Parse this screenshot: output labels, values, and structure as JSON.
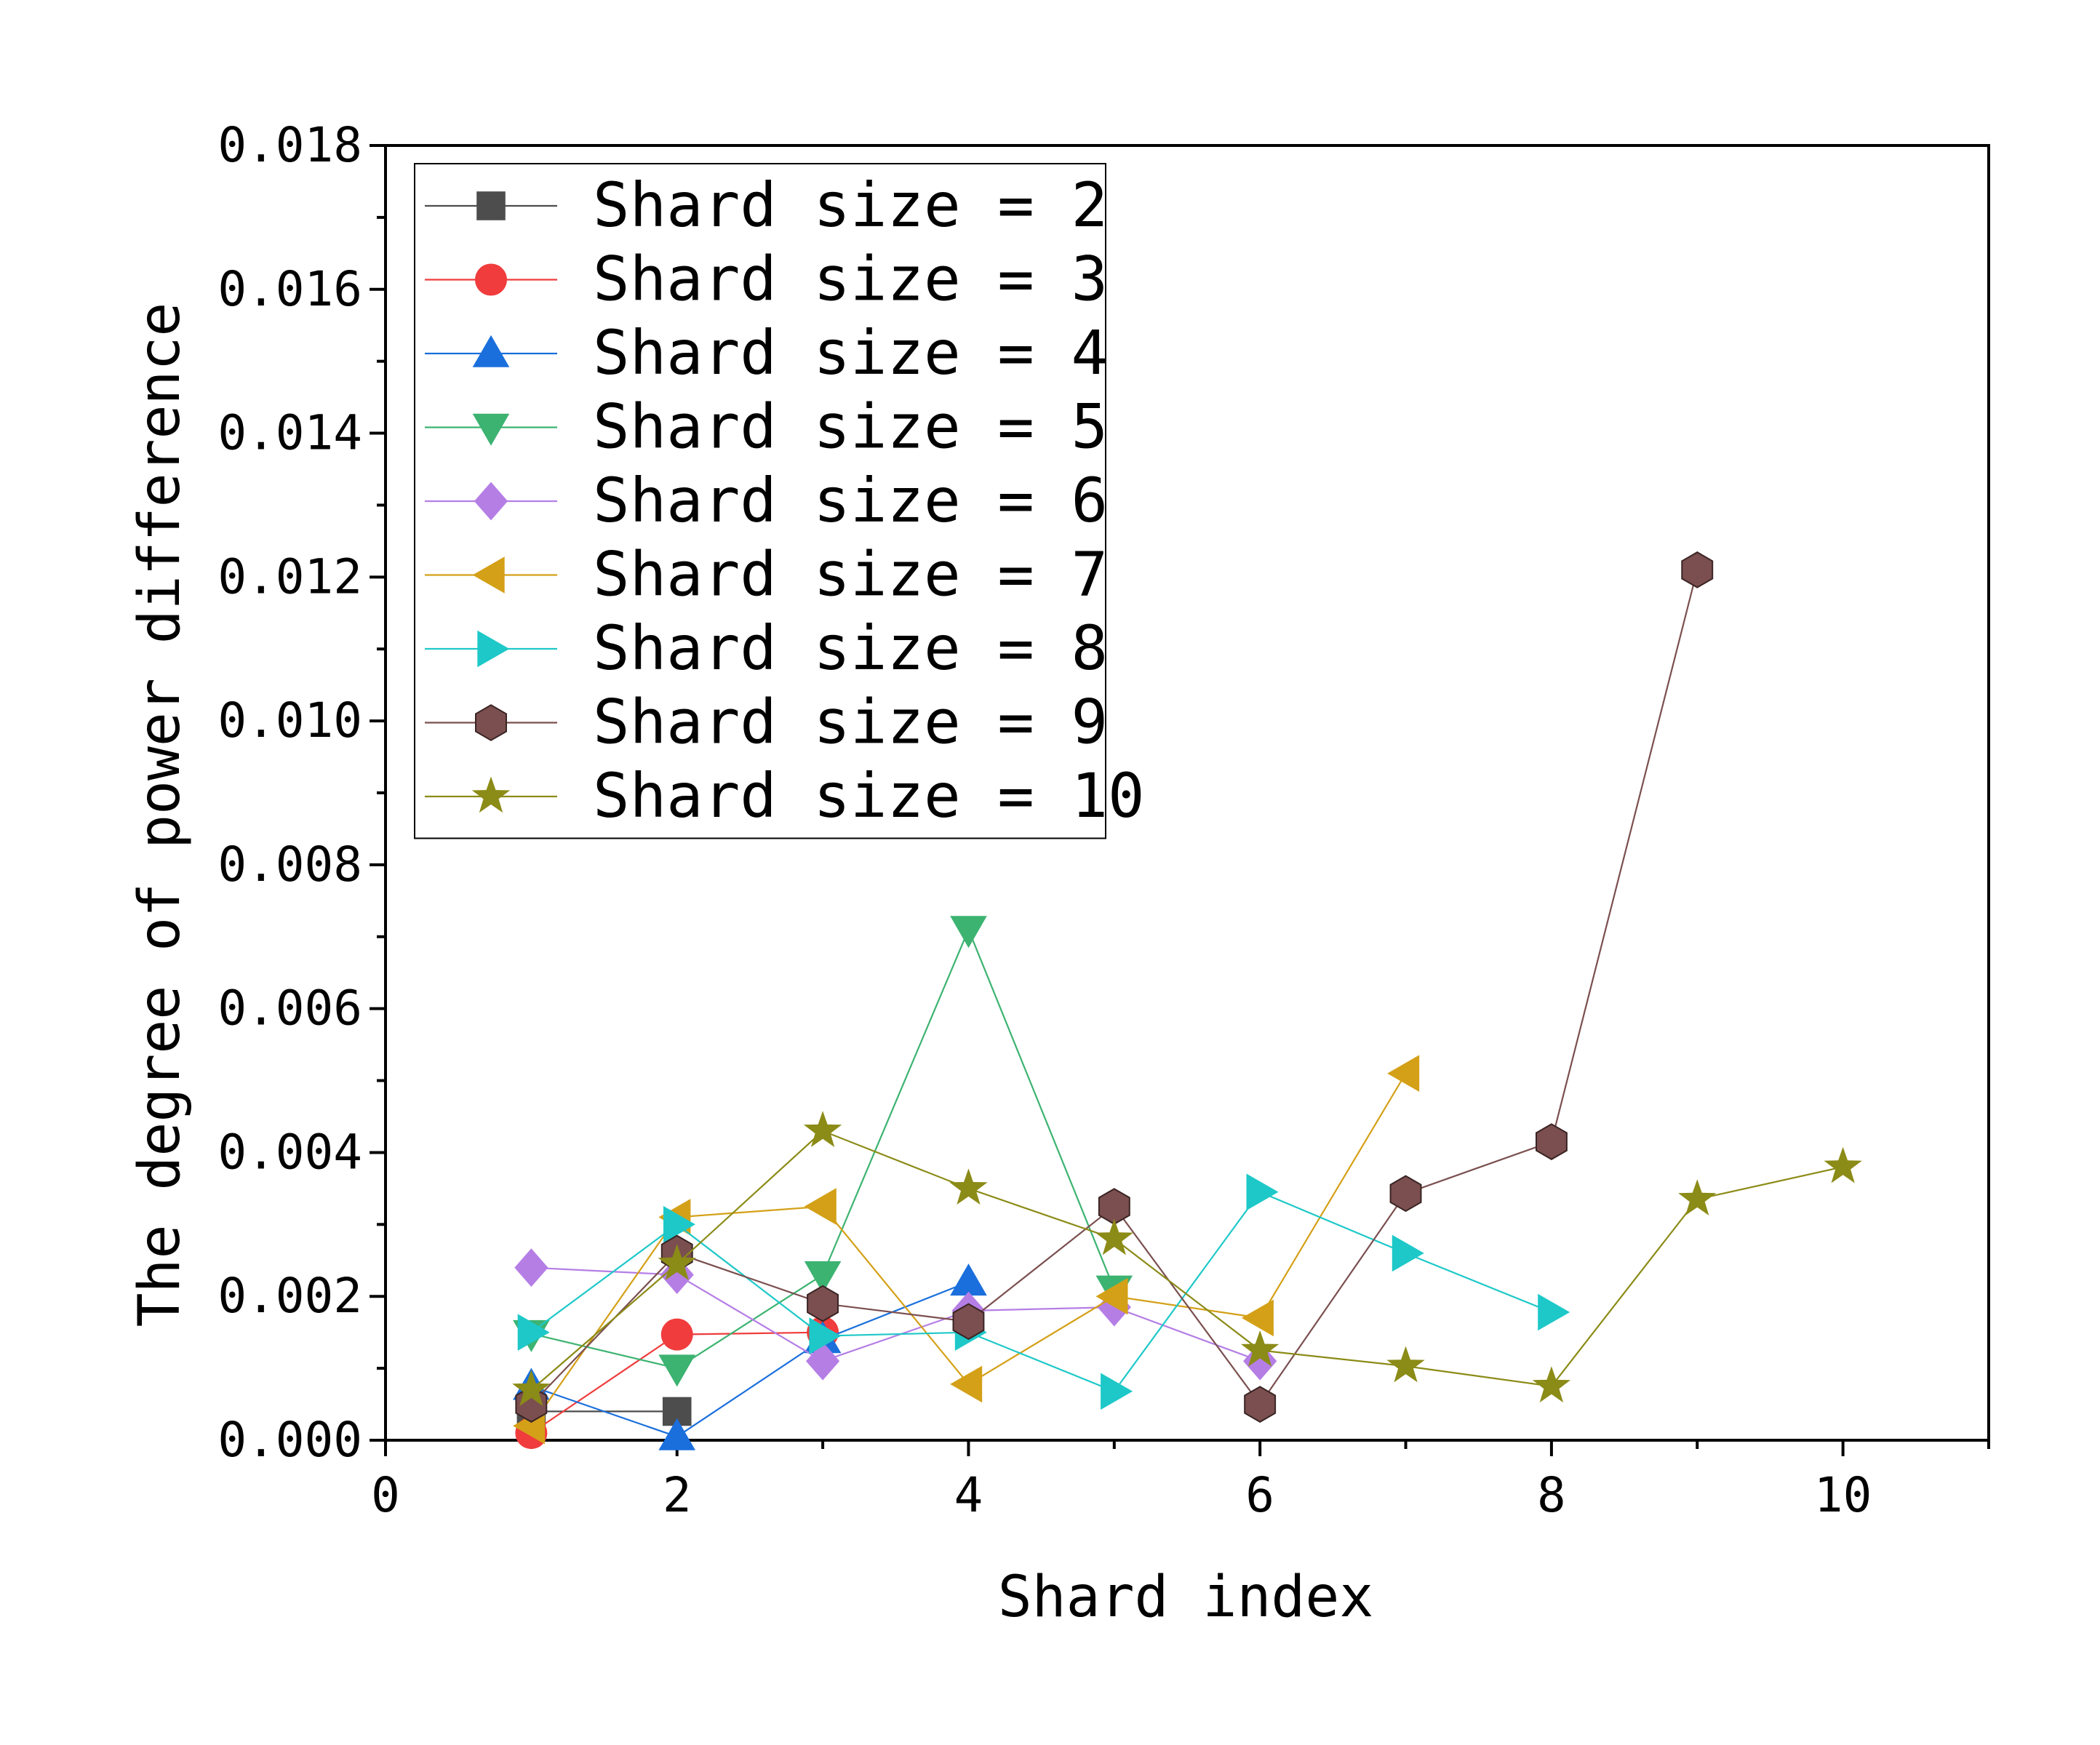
{
  "chart_data": {
    "type": "line",
    "title": "",
    "xlabel": "Shard index",
    "ylabel": "The degree of power difference",
    "xlim": [
      0,
      11
    ],
    "ylim": [
      0,
      0.018
    ],
    "x_ticks": [
      0,
      2,
      4,
      6,
      8,
      10
    ],
    "x_tick_labels": [
      "0",
      "2",
      "4",
      "6",
      "8",
      "10"
    ],
    "y_ticks": [
      0,
      0.002,
      0.004,
      0.006,
      0.008,
      0.01,
      0.012,
      0.014,
      0.016,
      0.018
    ],
    "y_tick_labels": [
      "0.000",
      "0.002",
      "0.004",
      "0.006",
      "0.008",
      "0.010",
      "0.012",
      "0.014",
      "0.016",
      "0.018"
    ],
    "grid": false,
    "legend_position": "top-left",
    "series": [
      {
        "name": "Shard size = 2",
        "marker": "square",
        "color": "#4d4d4d",
        "x": [
          1,
          2
        ],
        "y": [
          0.0004,
          0.0004
        ]
      },
      {
        "name": "Shard size = 3",
        "marker": "circle",
        "color": "#f03c3c",
        "x": [
          1,
          2,
          3
        ],
        "y": [
          0.0001,
          0.00147,
          0.0015
        ]
      },
      {
        "name": "Shard size = 4",
        "marker": "triangle-up",
        "color": "#1a6fdc",
        "x": [
          1,
          2,
          3,
          4
        ],
        "y": [
          0.00075,
          5e-05,
          0.0014,
          0.0022
        ]
      },
      {
        "name": "Shard size = 5",
        "marker": "triangle-down",
        "color": "#3cb371",
        "x": [
          1,
          2,
          3,
          4,
          5
        ],
        "y": [
          0.00148,
          0.001,
          0.0023,
          0.0071,
          0.0021
        ]
      },
      {
        "name": "Shard size = 6",
        "marker": "diamond",
        "color": "#b57ee5",
        "x": [
          1,
          2,
          3,
          4,
          5,
          6
        ],
        "y": [
          0.0024,
          0.0023,
          0.0011,
          0.0018,
          0.00185,
          0.0011
        ]
      },
      {
        "name": "Shard size = 7",
        "marker": "triangle-left",
        "color": "#d4a017",
        "x": [
          1,
          2,
          3,
          4,
          5,
          6,
          7
        ],
        "y": [
          0.0002,
          0.0031,
          0.00325,
          0.00078,
          0.002,
          0.0017,
          0.0051
        ]
      },
      {
        "name": "Shard size = 8",
        "marker": "triangle-right",
        "color": "#1ec8c8",
        "x": [
          1,
          2,
          3,
          4,
          5,
          6,
          7,
          8
        ],
        "y": [
          0.0015,
          0.003,
          0.00145,
          0.0015,
          0.00068,
          0.00345,
          0.0026,
          0.00178
        ]
      },
      {
        "name": "Shard size = 9",
        "marker": "hexagon",
        "color": "#7b4f4f",
        "x": [
          1,
          2,
          3,
          4,
          5,
          6,
          7,
          8,
          9
        ],
        "y": [
          0.0005,
          0.0026,
          0.0019,
          0.00165,
          0.00325,
          0.0005,
          0.00343,
          0.00415,
          0.0121
        ]
      },
      {
        "name": "Shard size = 10",
        "marker": "star",
        "color": "#8b8b17",
        "x": [
          1,
          2,
          3,
          4,
          5,
          6,
          7,
          8,
          9,
          10
        ],
        "y": [
          0.0007,
          0.00245,
          0.0043,
          0.0035,
          0.0028,
          0.00125,
          0.00103,
          0.00075,
          0.00335,
          0.0038
        ]
      }
    ]
  }
}
